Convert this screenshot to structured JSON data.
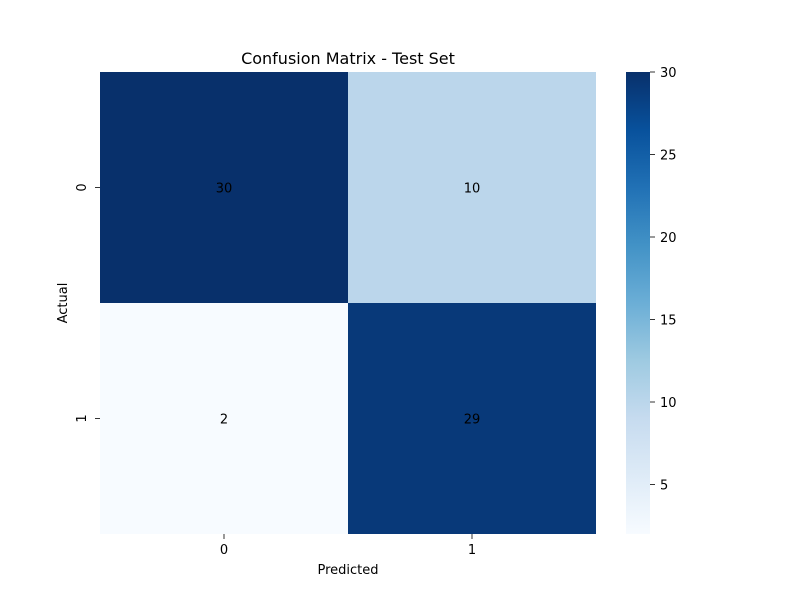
{
  "chart_data": {
    "type": "heatmap",
    "title": "Confusion Matrix - Test Set",
    "xlabel": "Predicted",
    "ylabel": "Actual",
    "x_categories": [
      "0",
      "1"
    ],
    "y_categories": [
      "0",
      "1"
    ],
    "values": [
      [
        30,
        10
      ],
      [
        2,
        29
      ]
    ],
    "colormap": "Blues",
    "colorbar": {
      "range": [
        2,
        30
      ],
      "ticks": [
        5,
        10,
        15,
        20,
        25,
        30
      ]
    },
    "annotation_colors": {
      "on_dark": "#ffffff",
      "on_light": "#262626"
    },
    "colormap_stops": [
      {
        "t": 0.0,
        "color": "#f7fbff"
      },
      {
        "t": 0.125,
        "color": "#deebf7"
      },
      {
        "t": 0.25,
        "color": "#c6dbef"
      },
      {
        "t": 0.375,
        "color": "#9ecae1"
      },
      {
        "t": 0.5,
        "color": "#6baed6"
      },
      {
        "t": 0.625,
        "color": "#4292c6"
      },
      {
        "t": 0.75,
        "color": "#2171b5"
      },
      {
        "t": 0.875,
        "color": "#08519c"
      },
      {
        "t": 1.0,
        "color": "#08306b"
      }
    ]
  }
}
